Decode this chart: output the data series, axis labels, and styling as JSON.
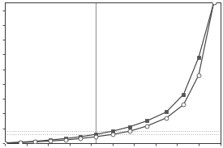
{
  "upper_curve_x": [
    0.0,
    0.07,
    0.14,
    0.21,
    0.28,
    0.35,
    0.42,
    0.5,
    0.58,
    0.66,
    0.75,
    0.83,
    0.9,
    0.97
  ],
  "upper_curve_y": [
    0.0,
    0.5,
    1.2,
    2.0,
    3.0,
    4.2,
    5.8,
    8.0,
    11.0,
    15.0,
    21.0,
    33.0,
    58.0,
    95.0
  ],
  "lower_curve_x": [
    0.0,
    0.07,
    0.14,
    0.21,
    0.28,
    0.35,
    0.42,
    0.5,
    0.58,
    0.66,
    0.75,
    0.83,
    0.9,
    0.97
  ],
  "lower_curve_y": [
    0.0,
    0.3,
    0.7,
    1.3,
    2.0,
    3.0,
    4.2,
    5.8,
    8.0,
    11.5,
    17.0,
    26.0,
    46.0,
    95.0
  ],
  "upper_marker": "s",
  "lower_marker": "o",
  "upper_marker_size": 3.5,
  "lower_marker_size": 3.5,
  "line_color": "#444444",
  "upper_marker_color": "#555555",
  "lower_marker_facecolor": "white",
  "lower_marker_edgecolor": "#555555",
  "hline1_y": 8.0,
  "hline2_y": 5.8,
  "vline_x": 0.42,
  "hline_color": "#aaaaaa",
  "vline_color": "#999999",
  "hline_style": "dotted",
  "vline_style": "solid",
  "xlim": [
    0.0,
    1.0
  ],
  "ylim": [
    0,
    95
  ],
  "bg_color": "#ffffff",
  "fig_width": 2.75,
  "fig_height": 1.83,
  "dpi": 100
}
